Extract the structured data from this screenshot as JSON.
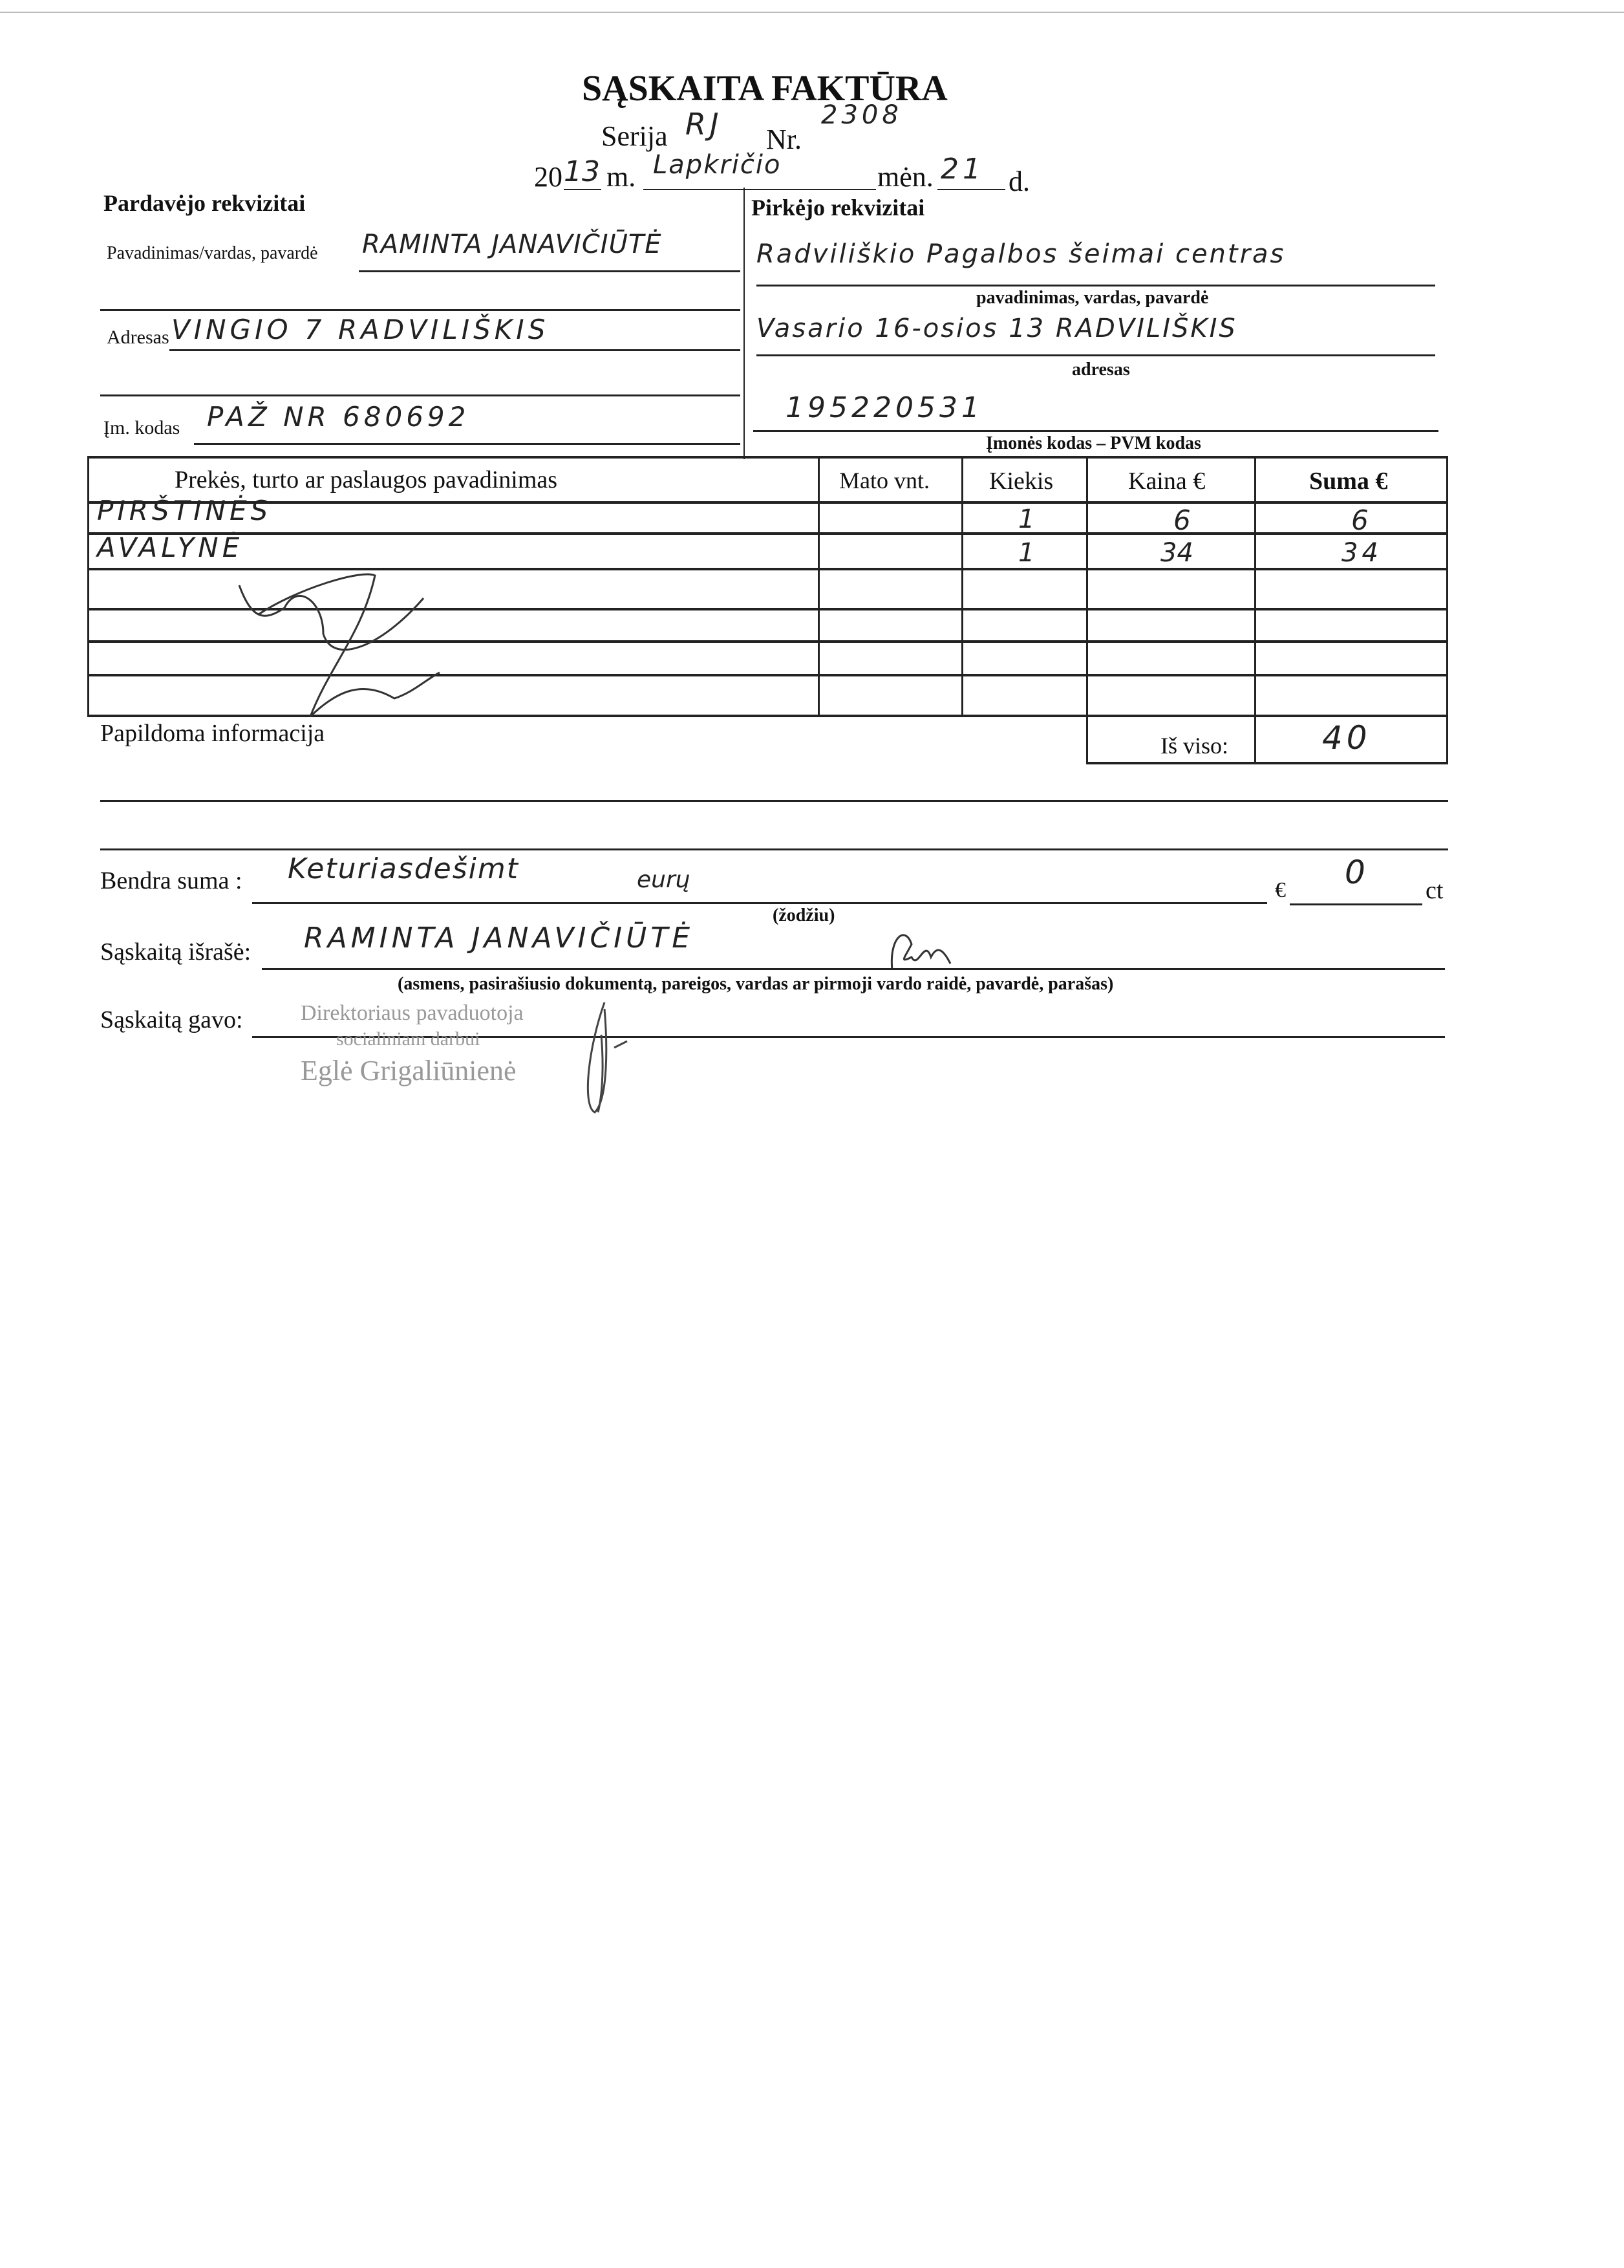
{
  "title": "SĄSKAITA FAKTŪRA",
  "series": {
    "label": "Serija",
    "value": "RJ",
    "nr_label": "Nr.",
    "nr_value": "2308"
  },
  "date": {
    "year_prefix": "20",
    "year_suffix": "13",
    "year_label": "m.",
    "month": "Lapkričio",
    "month_label": "mėn.",
    "day": "21",
    "day_label": "d."
  },
  "seller": {
    "heading": "Pardavėjo rekvizitai",
    "name_label": "Pavadinimas/vardas, pavardė",
    "name": "RAMINTA JANAVIČIŪTĖ",
    "address_label": "Adresas",
    "address": "VINGIO 7 RADVILIŠKIS",
    "code_label": "Įm. kodas",
    "code": "PAŽ NR 680692"
  },
  "buyer": {
    "heading": "Pirkėjo rekvizitai",
    "name": "Radviliškio Pagalbos šeimai centras",
    "name_caption": "pavadinimas, vardas, pavardė",
    "address": "Vasario 16-osios 13 RADVILIŠKIS",
    "address_caption": "adresas",
    "code": "195220531",
    "code_caption": "Įmonės kodas – PVM kodas"
  },
  "table": {
    "headers": [
      "Prekės, turto ar paslaugos pavadinimas",
      "Mato vnt.",
      "Kiekis",
      "Kaina €",
      "Suma €"
    ],
    "rows": [
      [
        "PIRŠTINĖS",
        "",
        "1",
        "6",
        "6"
      ],
      [
        "AVALYNĖ",
        "",
        "1",
        "34",
        "34"
      ]
    ],
    "total_label": "Iš viso:",
    "total": "40"
  },
  "additional_info_label": "Papildoma informacija",
  "total_words": {
    "label": "Bendra suma :",
    "value": "Keturiasdešimt",
    "currency_word": "eurų",
    "euro_label": "€",
    "cents": "0",
    "cents_label": "ct",
    "caption": "(žodžiu)"
  },
  "issued_by": {
    "label": "Sąskaitą išrašė:",
    "value": "RAMINTA JANAVIČIŪTĖ",
    "caption": "(asmens, pasirašiusio dokumentą, pareigos, vardas ar pirmoji vardo raidė, pavardė, parašas)"
  },
  "received_by": {
    "label": "Sąskaitą gavo:"
  },
  "stamp": {
    "line1": "Direktoriaus pavaduotoja",
    "line2": "socialiniam darbui",
    "line3": "Eglė Grigaliūnienė"
  }
}
